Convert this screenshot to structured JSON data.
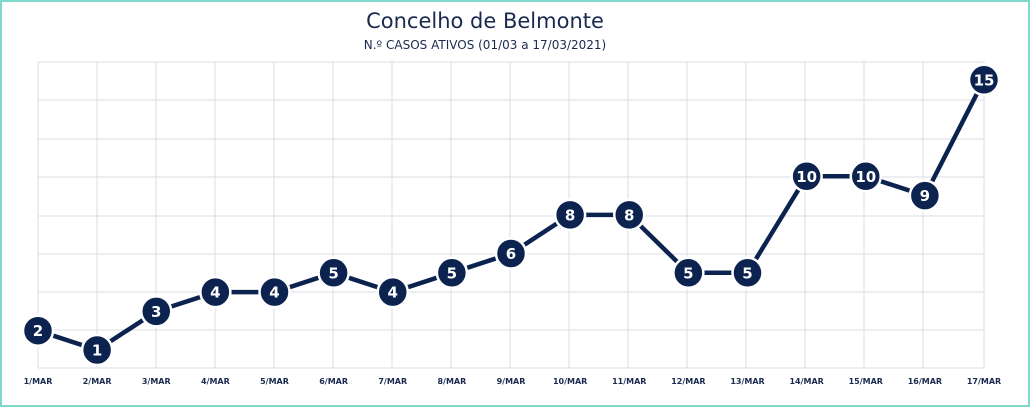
{
  "title": "Concelho de Belmonte",
  "subtitle": "N.º CASOS ATIVOS (01/03 a 17/03/2021)",
  "colors": {
    "line": "#0c2350",
    "marker": "#0c2350",
    "marker_text": "#ffffff",
    "grid": "#d9dde5",
    "frame": "#7fd8cc",
    "axis_label": "#1a2a4f"
  },
  "chart_data": {
    "type": "line",
    "title": "Concelho de Belmonte",
    "subtitle": "N.º CASOS ATIVOS (01/03 a 17/03/2021)",
    "xlabel": "",
    "ylabel": "",
    "categories": [
      "1/MAR",
      "2/MAR",
      "3/MAR",
      "4/MAR",
      "5/MAR",
      "6/MAR",
      "7/MAR",
      "8/MAR",
      "9/MAR",
      "10/MAR",
      "11/MAR",
      "12/MAR",
      "13/MAR",
      "14/MAR",
      "15/MAR",
      "16/MAR",
      "17/MAR"
    ],
    "values": [
      2,
      1,
      3,
      4,
      4,
      5,
      4,
      5,
      6,
      8,
      8,
      5,
      5,
      10,
      10,
      9,
      15
    ],
    "data_labels": [
      "2",
      "1",
      "3",
      "4",
      "4",
      "5",
      "4",
      "5",
      "6",
      "8",
      "8",
      "5",
      "5",
      "10",
      "10",
      "9",
      "15"
    ],
    "grid": true,
    "legend": "none"
  }
}
